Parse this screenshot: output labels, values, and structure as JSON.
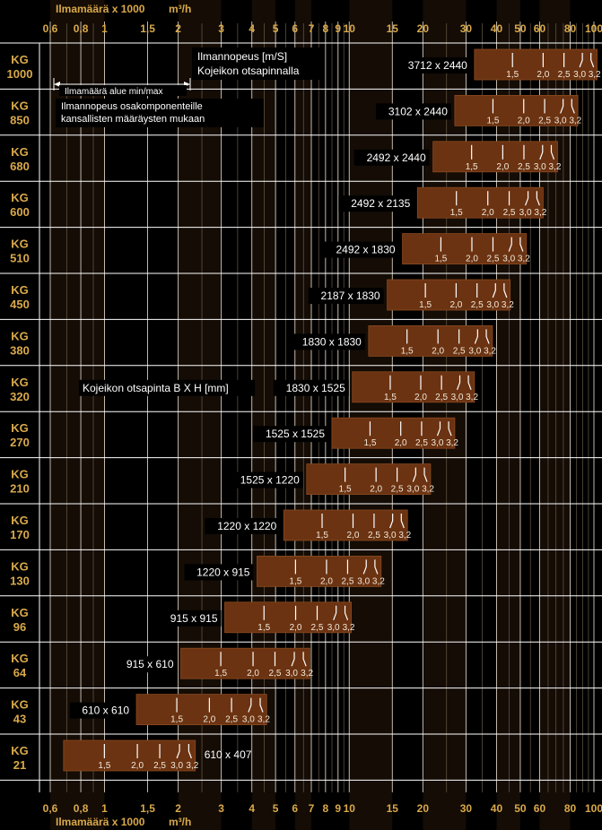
{
  "chart_data": {
    "type": "bar",
    "scale": "log",
    "xlim": [
      0.55,
      110
    ],
    "axis_title_top": "Ilmamäärä x 1000",
    "axis_title_bottom": "Ilmamäärä x 1000",
    "axis_unit": "m³/h",
    "top_ticks": [
      {
        "v": 0.6,
        "label": "0,6"
      },
      {
        "v": 0.8,
        "label": "0,8"
      },
      {
        "v": 1,
        "label": "1"
      },
      {
        "v": 1.5,
        "label": "1,5"
      },
      {
        "v": 2,
        "label": "2"
      },
      {
        "v": 3,
        "label": "3"
      },
      {
        "v": 4,
        "label": "4"
      },
      {
        "v": 5,
        "label": "5"
      },
      {
        "v": 6,
        "label": "6"
      },
      {
        "v": 7,
        "label": "7"
      },
      {
        "v": 8,
        "label": "8"
      },
      {
        "v": 9,
        "label": "9"
      },
      {
        "v": 10,
        "label": "10"
      },
      {
        "v": 15,
        "label": "15"
      },
      {
        "v": 20,
        "label": "20"
      },
      {
        "v": 30,
        "label": "30"
      },
      {
        "v": 40,
        "label": "40"
      },
      {
        "v": 50,
        "label": "50"
      },
      {
        "v": 60,
        "label": "60"
      },
      {
        "v": 80,
        "label": "80"
      },
      {
        "v": 100,
        "label": "100"
      }
    ],
    "bottom_ticks": [
      {
        "v": 0.6,
        "label": "0,6"
      },
      {
        "v": 0.8,
        "label": "0,8"
      },
      {
        "v": 1,
        "label": "1"
      },
      {
        "v": 1.5,
        "label": "1,5"
      },
      {
        "v": 2,
        "label": "2"
      },
      {
        "v": 3,
        "label": "3"
      },
      {
        "v": 4,
        "label": "4"
      },
      {
        "v": 5,
        "label": "5"
      },
      {
        "v": 6,
        "label": "6"
      },
      {
        "v": 7,
        "label": "7"
      },
      {
        "v": 8,
        "label": "8"
      },
      {
        "v": 9,
        "label": "9"
      },
      {
        "v": 10,
        "label": "10"
      },
      {
        "v": 15,
        "label": "15"
      },
      {
        "v": 20,
        "label": "20"
      },
      {
        "v": 30,
        "label": "30"
      },
      {
        "v": 40,
        "label": "40"
      },
      {
        "v": 50,
        "label": "50"
      },
      {
        "v": 60,
        "label": "60"
      },
      {
        "v": 80,
        "label": "80"
      },
      {
        "v": 100,
        "label": "100"
      }
    ],
    "velocity_labels": [
      "1,5",
      "2,0",
      "2,5",
      "3,0",
      "3,2"
    ],
    "series": [
      {
        "model": "KG",
        "size": "1000",
        "face": "3712 x 2440",
        "min": 32.5,
        "max": 103
      },
      {
        "model": "KG",
        "size": "850",
        "face": "3102 x 2440",
        "min": 27,
        "max": 86
      },
      {
        "model": "KG",
        "size": "680",
        "face": "2492 x 2440",
        "min": 22,
        "max": 71
      },
      {
        "model": "KG",
        "size": "600",
        "face": "2492 x 2135",
        "min": 19,
        "max": 62
      },
      {
        "model": "KG",
        "size": "510",
        "face": "2492 x 1830",
        "min": 16.5,
        "max": 53
      },
      {
        "model": "KG",
        "size": "450",
        "face": "2187 x 1830",
        "min": 14.3,
        "max": 45.5
      },
      {
        "model": "KG",
        "size": "380",
        "face": "1830 x 1830",
        "min": 12,
        "max": 38.5
      },
      {
        "model": "KG",
        "size": "320",
        "face": "1830 x 1525",
        "min": 10.3,
        "max": 32.5
      },
      {
        "model": "KG",
        "size": "270",
        "face": "1525 x 1525",
        "min": 8.5,
        "max": 27
      },
      {
        "model": "KG",
        "size": "210",
        "face": "1525 x 1220",
        "min": 6.7,
        "max": 21.5
      },
      {
        "model": "KG",
        "size": "170",
        "face": "1220 x 1220",
        "min": 5.4,
        "max": 17.3
      },
      {
        "model": "KG",
        "size": "130",
        "face": "1220 x 915",
        "min": 4.2,
        "max": 13.5
      },
      {
        "model": "KG",
        "size": "96",
        "face": "915 x 915",
        "min": 3.1,
        "max": 10.2
      },
      {
        "model": "KG",
        "size": "64",
        "face": "915 x 610",
        "min": 2.05,
        "max": 6.9
      },
      {
        "model": "KG",
        "size": "43",
        "face": "610 x 610",
        "min": 1.35,
        "max": 4.6
      },
      {
        "model": "KG",
        "size": "21",
        "face": "610 x 407",
        "min": 0.68,
        "max": 2.35
      }
    ],
    "annotations": {
      "velocity_title_line1": "Ilmannopeus [m/S]",
      "velocity_title_line2": "Kojeikon otsapinnalla",
      "range_label": "Ilmamäärä alue min/max",
      "component_line1": "Ilmannopeus osakomponenteille",
      "component_line2": "kansallisten määräysten mukaan",
      "face_label": "Kojeikon otsapinta B X H [mm]"
    },
    "colors": {
      "background": "#000000",
      "bar": "#6b3312",
      "bar_light": "#7a3e18",
      "tick_text": "#d9a94a",
      "row_label": "#d9a94a",
      "grid": "#ffffff",
      "text": "#ffffff"
    }
  }
}
